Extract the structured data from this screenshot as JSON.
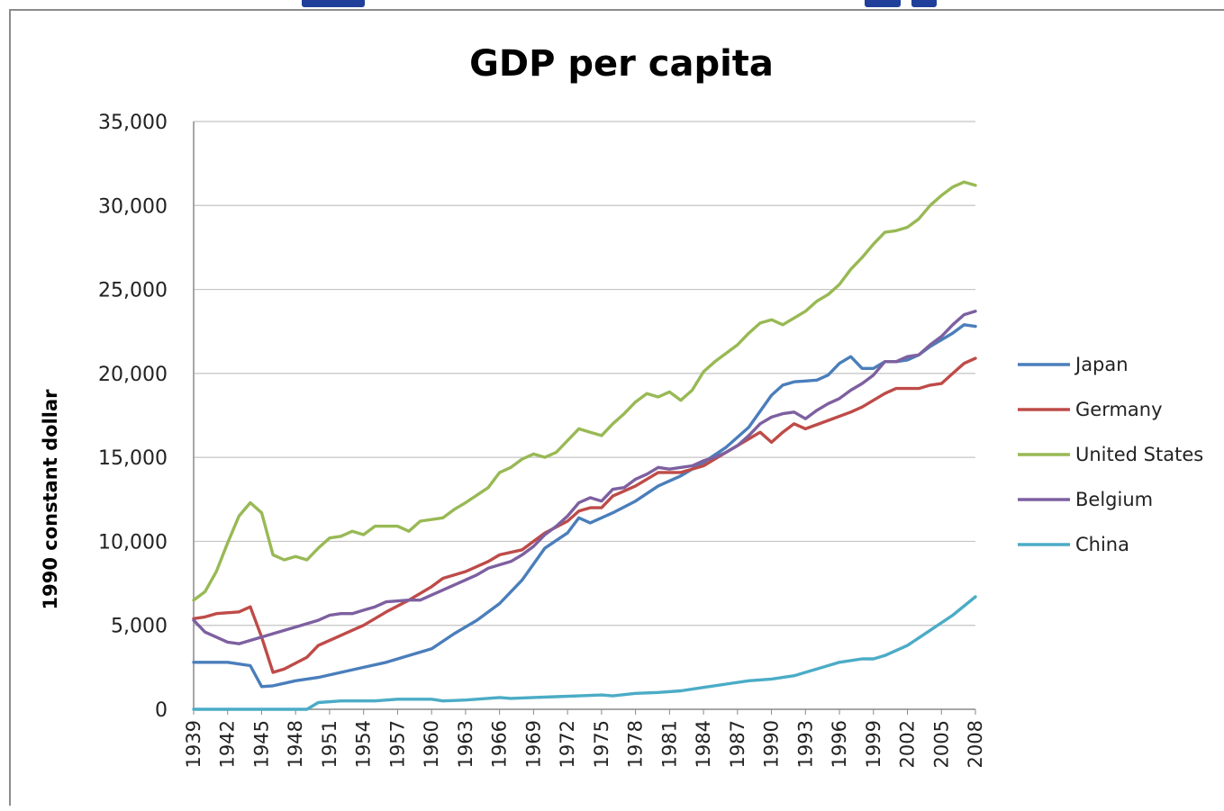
{
  "chart_data": {
    "type": "line",
    "title": "GDP per capita",
    "xlabel": "",
    "ylabel": "1990 constant dollar",
    "ylim": [
      0,
      35000
    ],
    "yticks": [
      0,
      5000,
      10000,
      15000,
      20000,
      25000,
      30000,
      35000
    ],
    "ytick_labels": [
      "0",
      "5,000",
      "10,000",
      "15,000",
      "20,000",
      "25,000",
      "30,000",
      "35,000"
    ],
    "xlim": [
      1939,
      2008
    ],
    "xtick_labels": [
      "1939",
      "1942",
      "1945",
      "1948",
      "1951",
      "1954",
      "1957",
      "1960",
      "1963",
      "1966",
      "1969",
      "1972",
      "1975",
      "1978",
      "1981",
      "1984",
      "1987",
      "1990",
      "1993",
      "1996",
      "1999",
      "2002",
      "2005",
      "2008"
    ],
    "grid": "horizontal",
    "legend_position": "right",
    "series": [
      {
        "name": "Japan",
        "color": "#4a7ebb",
        "points": [
          [
            1939,
            2800
          ],
          [
            1942,
            2800
          ],
          [
            1944,
            2600
          ],
          [
            1945,
            1350
          ],
          [
            1946,
            1400
          ],
          [
            1948,
            1700
          ],
          [
            1950,
            1900
          ],
          [
            1952,
            2200
          ],
          [
            1954,
            2500
          ],
          [
            1956,
            2800
          ],
          [
            1958,
            3200
          ],
          [
            1960,
            3600
          ],
          [
            1962,
            4500
          ],
          [
            1964,
            5300
          ],
          [
            1966,
            6300
          ],
          [
            1968,
            7700
          ],
          [
            1970,
            9600
          ],
          [
            1972,
            10500
          ],
          [
            1973,
            11400
          ],
          [
            1974,
            11100
          ],
          [
            1976,
            11700
          ],
          [
            1978,
            12400
          ],
          [
            1980,
            13300
          ],
          [
            1982,
            13900
          ],
          [
            1984,
            14700
          ],
          [
            1986,
            15600
          ],
          [
            1988,
            16800
          ],
          [
            1990,
            18700
          ],
          [
            1991,
            19300
          ],
          [
            1992,
            19500
          ],
          [
            1994,
            19600
          ],
          [
            1995,
            19900
          ],
          [
            1996,
            20600
          ],
          [
            1997,
            21000
          ],
          [
            1998,
            20300
          ],
          [
            1999,
            20300
          ],
          [
            2000,
            20700
          ],
          [
            2001,
            20700
          ],
          [
            2002,
            20800
          ],
          [
            2003,
            21100
          ],
          [
            2004,
            21600
          ],
          [
            2005,
            22000
          ],
          [
            2006,
            22400
          ],
          [
            2007,
            22900
          ],
          [
            2008,
            22800
          ]
        ]
      },
      {
        "name": "Germany",
        "color": "#be4b48",
        "points": [
          [
            1939,
            5400
          ],
          [
            1940,
            5500
          ],
          [
            1941,
            5700
          ],
          [
            1943,
            5800
          ],
          [
            1944,
            6100
          ],
          [
            1945,
            4300
          ],
          [
            1946,
            2200
          ],
          [
            1947,
            2400
          ],
          [
            1949,
            3100
          ],
          [
            1950,
            3800
          ],
          [
            1952,
            4400
          ],
          [
            1954,
            5000
          ],
          [
            1956,
            5800
          ],
          [
            1958,
            6500
          ],
          [
            1960,
            7300
          ],
          [
            1961,
            7800
          ],
          [
            1963,
            8200
          ],
          [
            1965,
            8800
          ],
          [
            1966,
            9200
          ],
          [
            1968,
            9500
          ],
          [
            1969,
            10000
          ],
          [
            1970,
            10500
          ],
          [
            1972,
            11200
          ],
          [
            1973,
            11800
          ],
          [
            1974,
            12000
          ],
          [
            1975,
            12000
          ],
          [
            1976,
            12700
          ],
          [
            1978,
            13300
          ],
          [
            1980,
            14100
          ],
          [
            1982,
            14100
          ],
          [
            1984,
            14500
          ],
          [
            1986,
            15300
          ],
          [
            1988,
            16100
          ],
          [
            1989,
            16500
          ],
          [
            1990,
            15900
          ],
          [
            1991,
            16500
          ],
          [
            1992,
            17000
          ],
          [
            1993,
            16700
          ],
          [
            1995,
            17200
          ],
          [
            1997,
            17700
          ],
          [
            1998,
            18000
          ],
          [
            1999,
            18400
          ],
          [
            2000,
            18800
          ],
          [
            2001,
            19100
          ],
          [
            2002,
            19100
          ],
          [
            2003,
            19100
          ],
          [
            2004,
            19300
          ],
          [
            2005,
            19400
          ],
          [
            2006,
            20000
          ],
          [
            2007,
            20600
          ],
          [
            2008,
            20900
          ]
        ]
      },
      {
        "name": "United States",
        "color": "#98b954",
        "points": [
          [
            1939,
            6500
          ],
          [
            1940,
            7000
          ],
          [
            1941,
            8200
          ],
          [
            1942,
            9900
          ],
          [
            1943,
            11500
          ],
          [
            1944,
            12300
          ],
          [
            1945,
            11700
          ],
          [
            1946,
            9200
          ],
          [
            1947,
            8900
          ],
          [
            1948,
            9100
          ],
          [
            1949,
            8900
          ],
          [
            1950,
            9600
          ],
          [
            1951,
            10200
          ],
          [
            1952,
            10300
          ],
          [
            1953,
            10600
          ],
          [
            1954,
            10400
          ],
          [
            1955,
            10900
          ],
          [
            1957,
            10900
          ],
          [
            1958,
            10600
          ],
          [
            1959,
            11200
          ],
          [
            1961,
            11400
          ],
          [
            1962,
            11900
          ],
          [
            1963,
            12300
          ],
          [
            1965,
            13200
          ],
          [
            1966,
            14100
          ],
          [
            1967,
            14400
          ],
          [
            1968,
            14900
          ],
          [
            1969,
            15200
          ],
          [
            1970,
            15000
          ],
          [
            1971,
            15300
          ],
          [
            1972,
            16000
          ],
          [
            1973,
            16700
          ],
          [
            1974,
            16500
          ],
          [
            1975,
            16300
          ],
          [
            1976,
            17000
          ],
          [
            1977,
            17600
          ],
          [
            1978,
            18300
          ],
          [
            1979,
            18800
          ],
          [
            1980,
            18600
          ],
          [
            1981,
            18900
          ],
          [
            1982,
            18400
          ],
          [
            1983,
            19000
          ],
          [
            1984,
            20100
          ],
          [
            1985,
            20700
          ],
          [
            1986,
            21200
          ],
          [
            1987,
            21700
          ],
          [
            1988,
            22400
          ],
          [
            1989,
            23000
          ],
          [
            1990,
            23200
          ],
          [
            1991,
            22900
          ],
          [
            1992,
            23300
          ],
          [
            1993,
            23700
          ],
          [
            1994,
            24300
          ],
          [
            1995,
            24700
          ],
          [
            1996,
            25300
          ],
          [
            1997,
            26200
          ],
          [
            1998,
            26900
          ],
          [
            1999,
            27700
          ],
          [
            2000,
            28400
          ],
          [
            2001,
            28500
          ],
          [
            2002,
            28700
          ],
          [
            2003,
            29200
          ],
          [
            2004,
            30000
          ],
          [
            2005,
            30600
          ],
          [
            2006,
            31100
          ],
          [
            2007,
            31400
          ],
          [
            2008,
            31200
          ]
        ]
      },
      {
        "name": "Belgium",
        "color": "#7d60a0",
        "points": [
          [
            1939,
            5300
          ],
          [
            1940,
            4600
          ],
          [
            1941,
            4300
          ],
          [
            1942,
            4000
          ],
          [
            1943,
            3900
          ],
          [
            1944,
            4100
          ],
          [
            1945,
            4300
          ],
          [
            1946,
            4500
          ],
          [
            1948,
            4900
          ],
          [
            1950,
            5300
          ],
          [
            1951,
            5600
          ],
          [
            1952,
            5700
          ],
          [
            1953,
            5700
          ],
          [
            1954,
            5900
          ],
          [
            1955,
            6100
          ],
          [
            1956,
            6400
          ],
          [
            1958,
            6500
          ],
          [
            1959,
            6500
          ],
          [
            1960,
            6800
          ],
          [
            1962,
            7400
          ],
          [
            1964,
            8000
          ],
          [
            1965,
            8400
          ],
          [
            1967,
            8800
          ],
          [
            1968,
            9200
          ],
          [
            1969,
            9700
          ],
          [
            1970,
            10400
          ],
          [
            1971,
            10900
          ],
          [
            1972,
            11500
          ],
          [
            1973,
            12300
          ],
          [
            1974,
            12600
          ],
          [
            1975,
            12400
          ],
          [
            1976,
            13100
          ],
          [
            1977,
            13200
          ],
          [
            1978,
            13700
          ],
          [
            1979,
            14000
          ],
          [
            1980,
            14400
          ],
          [
            1981,
            14300
          ],
          [
            1982,
            14400
          ],
          [
            1983,
            14500
          ],
          [
            1984,
            14800
          ],
          [
            1985,
            15000
          ],
          [
            1986,
            15300
          ],
          [
            1987,
            15700
          ],
          [
            1988,
            16300
          ],
          [
            1989,
            17000
          ],
          [
            1990,
            17400
          ],
          [
            1991,
            17600
          ],
          [
            1992,
            17700
          ],
          [
            1993,
            17300
          ],
          [
            1994,
            17800
          ],
          [
            1995,
            18200
          ],
          [
            1996,
            18500
          ],
          [
            1997,
            19000
          ],
          [
            1998,
            19400
          ],
          [
            1999,
            19900
          ],
          [
            2000,
            20700
          ],
          [
            2001,
            20700
          ],
          [
            2002,
            21000
          ],
          [
            2003,
            21100
          ],
          [
            2004,
            21700
          ],
          [
            2005,
            22200
          ],
          [
            2006,
            22900
          ],
          [
            2007,
            23500
          ],
          [
            2008,
            23700
          ]
        ]
      },
      {
        "name": "China",
        "color": "#4bacc6",
        "points": [
          [
            1939,
            0
          ],
          [
            1949,
            0
          ],
          [
            1950,
            400
          ],
          [
            1952,
            500
          ],
          [
            1955,
            500
          ],
          [
            1957,
            600
          ],
          [
            1960,
            600
          ],
          [
            1961,
            500
          ],
          [
            1963,
            550
          ],
          [
            1964,
            600
          ],
          [
            1966,
            700
          ],
          [
            1967,
            650
          ],
          [
            1969,
            700
          ],
          [
            1971,
            750
          ],
          [
            1973,
            800
          ],
          [
            1975,
            850
          ],
          [
            1976,
            800
          ],
          [
            1978,
            950
          ],
          [
            1980,
            1000
          ],
          [
            1982,
            1100
          ],
          [
            1984,
            1300
          ],
          [
            1986,
            1500
          ],
          [
            1988,
            1700
          ],
          [
            1990,
            1800
          ],
          [
            1992,
            2000
          ],
          [
            1994,
            2400
          ],
          [
            1996,
            2800
          ],
          [
            1998,
            3000
          ],
          [
            1999,
            3000
          ],
          [
            2000,
            3200
          ],
          [
            2002,
            3800
          ],
          [
            2004,
            4700
          ],
          [
            2006,
            5600
          ],
          [
            2008,
            6700
          ]
        ]
      }
    ]
  }
}
